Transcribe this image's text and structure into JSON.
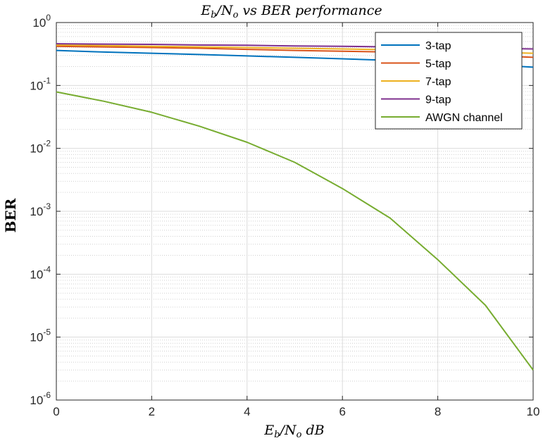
{
  "chart_data": {
    "type": "line",
    "title": "E_b/N_o vs BER performance",
    "xlabel": "E_b/N_o dB",
    "ylabel": "BER",
    "xlim": [
      0,
      10
    ],
    "ylim": [
      1e-06,
      1
    ],
    "yscale": "log",
    "grid": "on (major and minor)",
    "legend_position": "top-right",
    "x": [
      0,
      1,
      2,
      3,
      4,
      5,
      6,
      7,
      8,
      9,
      10
    ],
    "x_ticks": [
      "0",
      "2",
      "4",
      "6",
      "8",
      "10"
    ],
    "y_ticks": [
      {
        "base": "10",
        "exp": "-6"
      },
      {
        "base": "10",
        "exp": "-5"
      },
      {
        "base": "10",
        "exp": "-4"
      },
      {
        "base": "10",
        "exp": "-3"
      },
      {
        "base": "10",
        "exp": "-2"
      },
      {
        "base": "10",
        "exp": "-1"
      },
      {
        "base": "10",
        "exp": "0"
      }
    ],
    "series": [
      {
        "name": "3-tap",
        "color": "#0072BD",
        "values": [
          0.36,
          0.34,
          0.325,
          0.31,
          0.295,
          0.28,
          0.265,
          0.25,
          0.235,
          0.215,
          0.195
        ]
      },
      {
        "name": "5-tap",
        "color": "#D95319",
        "values": [
          0.42,
          0.41,
          0.4,
          0.39,
          0.375,
          0.36,
          0.35,
          0.34,
          0.32,
          0.3,
          0.28
        ]
      },
      {
        "name": "7-tap",
        "color": "#EDB120",
        "values": [
          0.44,
          0.43,
          0.42,
          0.41,
          0.4,
          0.39,
          0.38,
          0.37,
          0.355,
          0.34,
          0.325
        ]
      },
      {
        "name": "9-tap",
        "color": "#7E2F8E",
        "values": [
          0.46,
          0.455,
          0.45,
          0.44,
          0.435,
          0.425,
          0.42,
          0.41,
          0.4,
          0.39,
          0.38
        ]
      },
      {
        "name": "AWGN channel",
        "color": "#77AC30",
        "values": [
          0.079,
          0.056,
          0.0375,
          0.0225,
          0.0125,
          0.006,
          0.0023,
          0.00078,
          0.00017,
          3.2e-05,
          3e-06
        ]
      }
    ]
  }
}
